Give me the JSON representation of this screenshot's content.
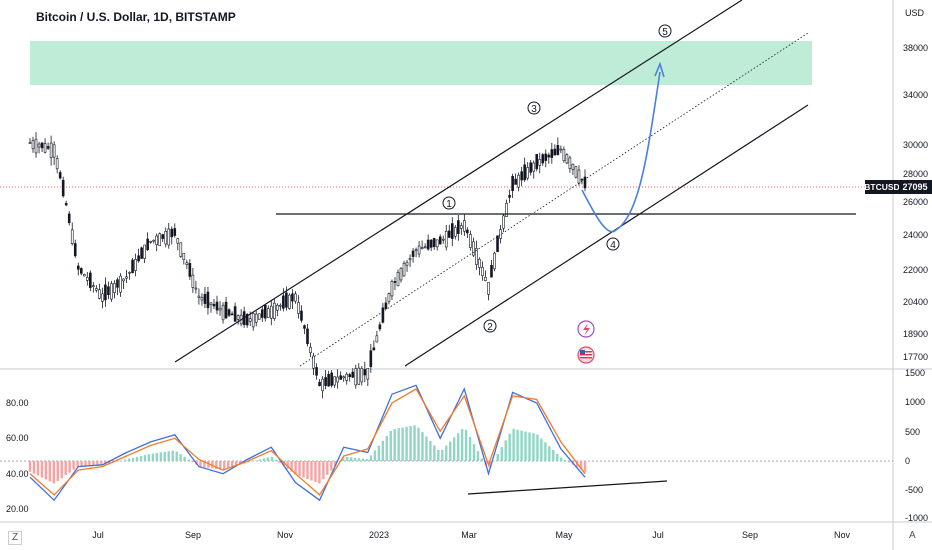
{
  "header": {
    "title": "Bitcoin / U.S. Dollar, 1D, BITSTAMP"
  },
  "axis": {
    "currency_label": "USD",
    "price_ticks": [
      "38000",
      "34000",
      "30000",
      "28000",
      "26000",
      "24000",
      "22000",
      "20400",
      "18900",
      "17700"
    ],
    "last_price_symbol": "BTCUSD",
    "last_price": "27095",
    "osc_left_ticks": [
      "80.00",
      "60.00",
      "40.00",
      "20.00"
    ],
    "osc_right_ticks": [
      "1500",
      "1000",
      "500",
      "0",
      "-500",
      "-1000"
    ],
    "time_ticks": [
      "Jul",
      "Sep",
      "Nov",
      "2023",
      "Mar",
      "May",
      "Jul",
      "Sep",
      "Nov"
    ]
  },
  "corner": {
    "left": "Z",
    "right": "A"
  },
  "annotations": {
    "wave_labels": [
      "1",
      "2",
      "3",
      "4",
      "5"
    ]
  },
  "colors": {
    "candle": "#131722",
    "target_zone": "#b7ead3",
    "current_price_line": "#e06666",
    "price_badge_bg": "#131722",
    "projection": "#4a7fe0",
    "osc_blue": "#3f6fd8",
    "osc_orange": "#f07b2a",
    "hist_pos": "#8fd6c4",
    "hist_neg": "#f4a3a3"
  },
  "icons": [
    "flash-event-icon",
    "us-flag-event-icon"
  ],
  "chart_data": [
    {
      "type": "line",
      "title": "Bitcoin / U.S. Dollar, 1D, BITSTAMP",
      "xlabel": "",
      "ylabel": "USD",
      "y_scale": "log",
      "x": [
        "2022-06",
        "2022-06",
        "2022-06",
        "2022-07",
        "2022-07",
        "2022-08",
        "2022-08",
        "2022-09",
        "2022-09",
        "2022-10",
        "2022-10",
        "2022-11",
        "2022-11",
        "2022-12",
        "2022-12",
        "2023-01",
        "2023-01",
        "2023-02",
        "2023-02",
        "2023-03",
        "2023-03",
        "2023-04",
        "2023-04",
        "2023-05"
      ],
      "series": [
        {
          "values": [
            30000,
            29500,
            22000,
            20500,
            21500,
            23500,
            24000,
            20500,
            19800,
            19300,
            19800,
            20500,
            16500,
            16800,
            17000,
            21000,
            23000,
            23500,
            24500,
            21000,
            27000,
            28500,
            29500,
            27095
          ]
        }
      ],
      "horizontal_levels": [
        25300,
        27095
      ],
      "target_zone": [
        34800,
        38400
      ],
      "projection": [
        27095,
        25000,
        24000,
        26000,
        36800
      ],
      "ylim": [
        16000,
        41000
      ]
    },
    {
      "type": "line",
      "title": "",
      "left_axis": [
        20,
        80
      ],
      "right_axis": [
        -1000,
        1500
      ],
      "series": [
        {
          "values": [
            38,
            25,
            44,
            45,
            52,
            58,
            62,
            44,
            40,
            48,
            55,
            35,
            25,
            55,
            52,
            85,
            90,
            60,
            88,
            40,
            86,
            80,
            54,
            38
          ]
        },
        {
          "values": [
            40,
            28,
            42,
            44,
            50,
            56,
            60,
            48,
            42,
            47,
            53,
            40,
            28,
            50,
            54,
            80,
            88,
            64,
            84,
            45,
            84,
            82,
            58,
            40
          ]
        }
      ]
    }
  ]
}
